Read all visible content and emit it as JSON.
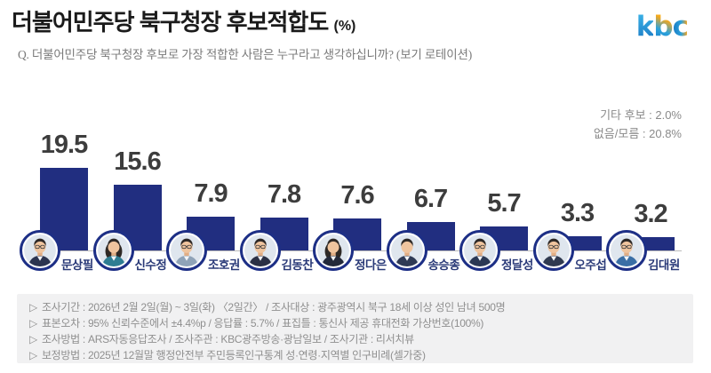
{
  "header": {
    "title": "더불어민주당 북구청장 후보적합도",
    "title_unit": "(%)",
    "question": "Q. 더불어민주당 북구청장 후보로 가장 적합한 사람은 누구라고 생각하십니까? (보기 로테이션)",
    "logo": {
      "k": "k",
      "b": "b",
      "c": "c"
    }
  },
  "side_notes": {
    "other_candidates": "기타 후보 : 2.0%",
    "none_dont_know": "없음/모름 : 20.8%"
  },
  "chart_data": {
    "type": "bar",
    "title": "더불어민주당 북구청장 후보적합도 (%)",
    "categories": [
      "문상필",
      "신수정",
      "조호권",
      "김동찬",
      "정다은",
      "송승종",
      "정달성",
      "오주섭",
      "김대원"
    ],
    "values": [
      19.5,
      15.6,
      7.9,
      7.8,
      7.6,
      6.7,
      5.7,
      3.3,
      3.2
    ],
    "unit": "%",
    "xlabel": "",
    "ylabel": "",
    "ylim": [
      0,
      22
    ],
    "grid": false,
    "legend": "none",
    "bar_color": "#212e80",
    "extra_results": {
      "기타 후보": 2.0,
      "없음/모름": 20.8
    },
    "people": [
      {
        "gender": "m",
        "glasses": true,
        "jacket": "#2c3450"
      },
      {
        "gender": "f",
        "glasses": false,
        "jacket": "#2e7d92"
      },
      {
        "gender": "m",
        "glasses": true,
        "jacket": "#8fa3b8"
      },
      {
        "gender": "m",
        "glasses": true,
        "jacket": "#2b3045"
      },
      {
        "gender": "f",
        "glasses": false,
        "jacket": "#23293a"
      },
      {
        "gender": "m",
        "glasses": false,
        "jacket": "#2f3a55"
      },
      {
        "gender": "m",
        "glasses": true,
        "jacket": "#2b3854"
      },
      {
        "gender": "m",
        "glasses": true,
        "jacket": "#303a50"
      },
      {
        "gender": "m",
        "glasses": true,
        "jacket": "#3a6ea5"
      }
    ]
  },
  "footnotes": {
    "marker": "▷",
    "lines": [
      "조사기간 : 2026년 2월 2일(월) ~ 3일(화) 〈2일간〉 / 조사대상 : 광주광역시 북구 18세 이상 성인 남녀 500명",
      "표본오차 : 95% 신뢰수준에서 ±4.4%p / 응답률 : 5.7% / 표집틀 : 통신사 제공 휴대전화 가상번호(100%)",
      "조사방법 : ARS자동응답조사 / 조사주관 : KBC광주방송·광남일보 / 조사기관 : 리서치뷰",
      "보정방법 : 2025년 12월말 행정안전부 주민등록인구통계 성·연령·지역별 인구비례(셀가중)"
    ]
  },
  "colors": {
    "bar": "#212e80",
    "avatar_ring": "#1d2f86",
    "name_text": "#2a3a78",
    "value_text": "#3d3d3d",
    "axis": "#bcbcbc",
    "footer_bg": "#f1f1f2",
    "footer_text": "#8f8f8f",
    "skin": "#efc49e",
    "hair": "#2e2926",
    "photo_bg": "#dfe6ee"
  }
}
